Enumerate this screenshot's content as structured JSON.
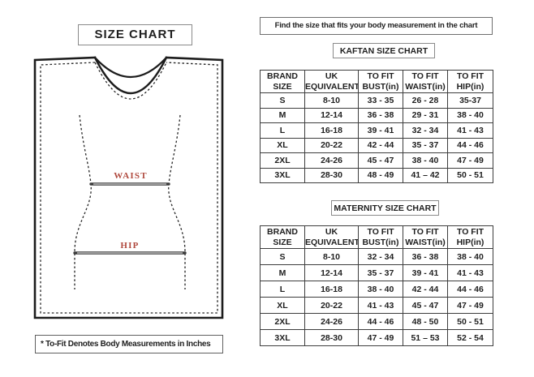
{
  "left": {
    "title": "SIZE CHART",
    "diagram": {
      "waist_label": "WAIST",
      "hip_label": "HIP",
      "label_color": "#b0493e"
    },
    "footnote": "* To-Fit Denotes Body Measurements in Inches"
  },
  "right": {
    "banner": "Find the size that fits your body measurement in the chart",
    "kaftan": {
      "title": "KAFTAN SIZE CHART",
      "headers": [
        [
          "BRAND",
          "SIZE"
        ],
        [
          "UK",
          "EQUIVALENT"
        ],
        [
          "TO FIT",
          "BUST(in)"
        ],
        [
          "TO FIT",
          "WAIST(in)"
        ],
        [
          "TO FIT",
          "HIP(in)"
        ]
      ],
      "rows": [
        [
          "S",
          "8-10",
          "33 - 35",
          "26 - 28",
          "35-37"
        ],
        [
          "M",
          "12-14",
          "36 - 38",
          "29 - 31",
          "38 - 40"
        ],
        [
          "L",
          "16-18",
          "39 - 41",
          "32 - 34",
          "41 - 43"
        ],
        [
          "XL",
          "20-22",
          "42 - 44",
          "35 - 37",
          "44 - 46"
        ],
        [
          "2XL",
          "24-26",
          "45 - 47",
          "38 - 40",
          "47 - 49"
        ],
        [
          "3XL",
          "28-30",
          "48 - 49",
          "41 – 42",
          "50 - 51"
        ]
      ]
    },
    "maternity": {
      "title": "MATERNITY SIZE CHART",
      "headers": [
        [
          "BRAND",
          "SIZE"
        ],
        [
          "UK",
          "EQUIVALENT"
        ],
        [
          "TO FIT",
          "BUST(in)"
        ],
        [
          "TO FIT",
          "WAIST(in)"
        ],
        [
          "TO FIT",
          "HIP(in)"
        ]
      ],
      "rows": [
        [
          "S",
          "8-10",
          "32 - 34",
          "36 - 38",
          "38 - 40"
        ],
        [
          "M",
          "12-14",
          "35 - 37",
          "39 - 41",
          "41 - 43"
        ],
        [
          "L",
          "16-18",
          "38 - 40",
          "42 - 44",
          "44 - 46"
        ],
        [
          "XL",
          "20-22",
          "41 - 43",
          "45 - 47",
          "47 - 49"
        ],
        [
          "2XL",
          "24-26",
          "44 - 46",
          "48 - 50",
          "50 - 51"
        ],
        [
          "3XL",
          "28-30",
          "47 - 49",
          "51 – 53",
          "52 - 54"
        ]
      ]
    }
  }
}
